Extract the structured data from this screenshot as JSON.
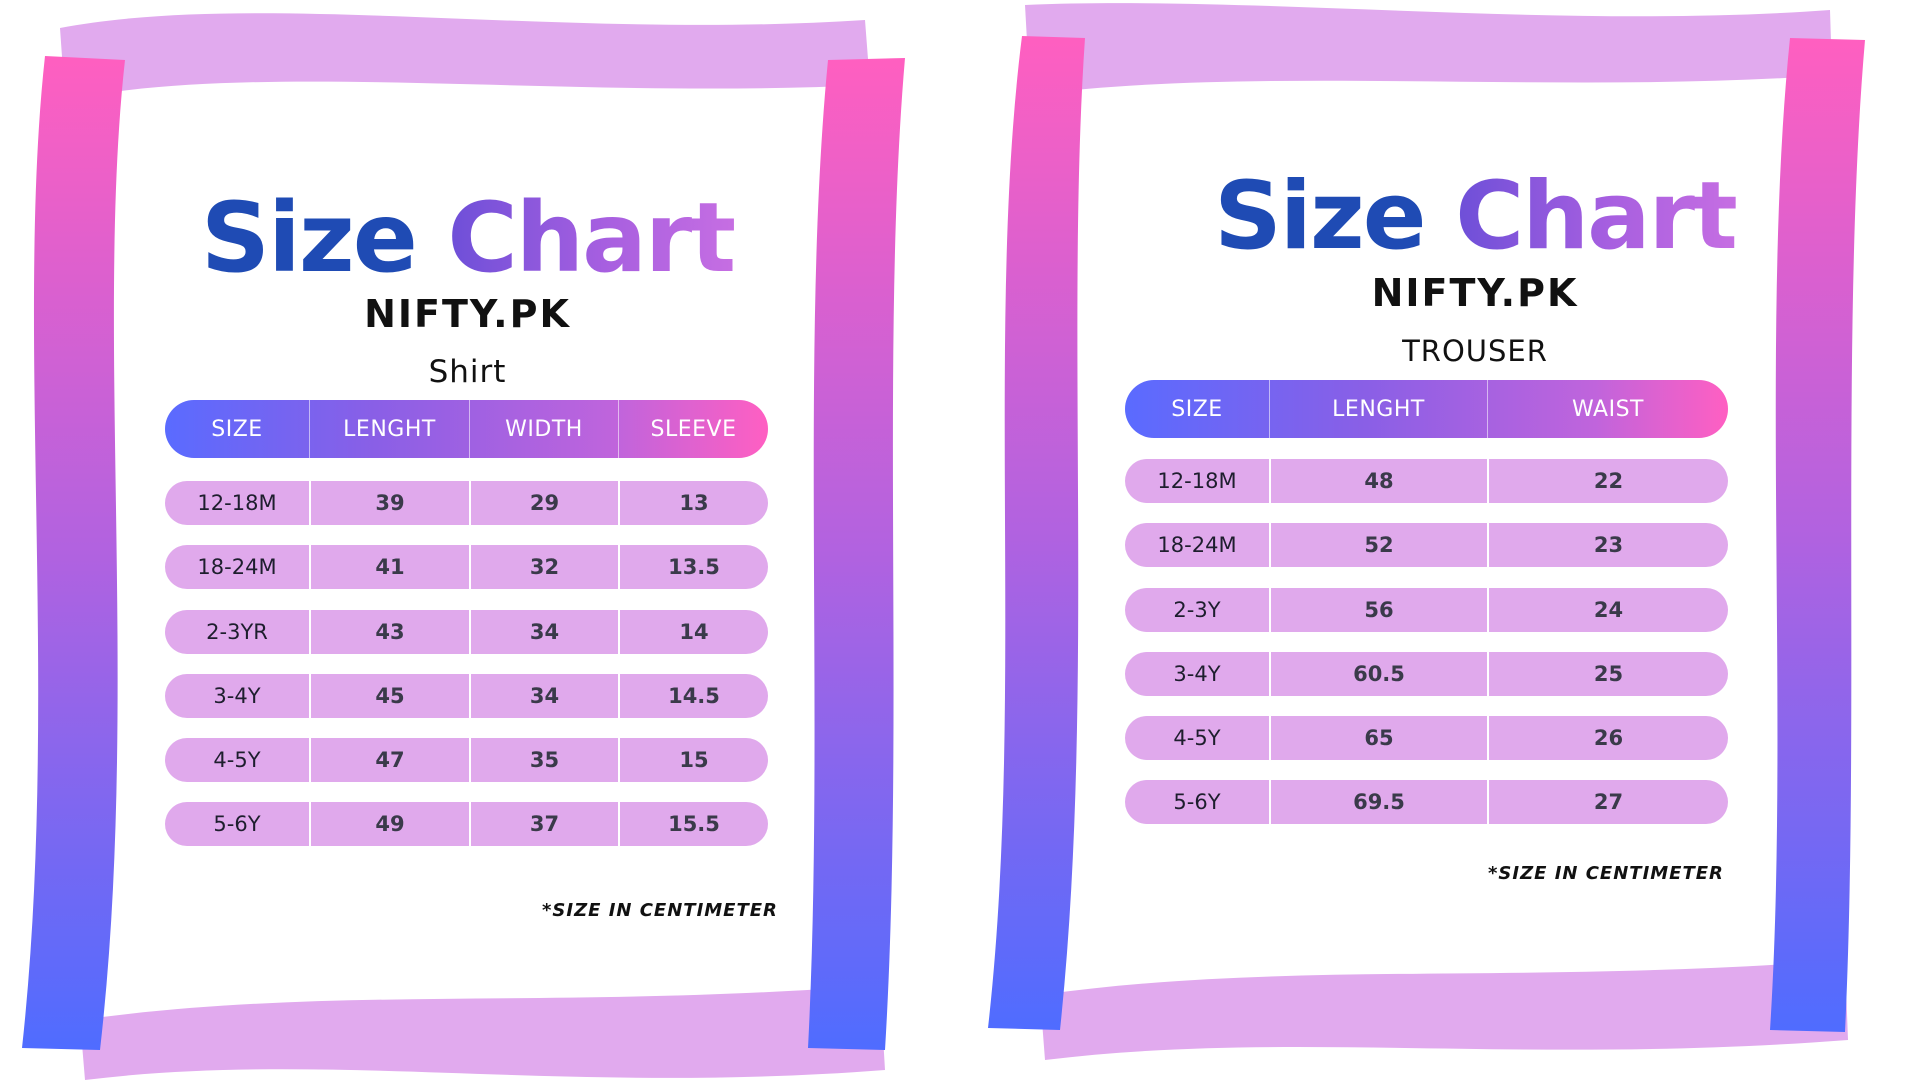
{
  "colors": {
    "title_blue": "#1f4bb4",
    "title_purple": "#b86ae0",
    "frame_pink": "#ff5fc0",
    "frame_blue": "#4f6cff",
    "ribbon_lilac": "#e1aaee",
    "row_fill": "#e0a9ec",
    "header_gradient": [
      "#5a6bff",
      "#8a5fe6",
      "#c064dc",
      "#ff5fc2"
    ]
  },
  "left_card": {
    "title_word1": "Size",
    "title_word2": "Chart",
    "brand": "NIFTY.PK",
    "subtitle": "Shirt",
    "headers": [
      "SIZE",
      "LENGHT",
      "WIDTH",
      "SLEEVE"
    ],
    "rows": [
      {
        "size": "12-18M",
        "length": "39",
        "width": "29",
        "sleeve": "13"
      },
      {
        "size": "18-24M",
        "length": "41",
        "width": "32",
        "sleeve": "13.5"
      },
      {
        "size": "2-3YR",
        "length": "43",
        "width": "34",
        "sleeve": "14"
      },
      {
        "size": "3-4Y",
        "length": "45",
        "width": "34",
        "sleeve": "14.5"
      },
      {
        "size": "4-5Y",
        "length": "47",
        "width": "35",
        "sleeve": "15"
      },
      {
        "size": "5-6Y",
        "length": "49",
        "width": "37",
        "sleeve": "15.5"
      }
    ],
    "note": "*SIZE IN CENTIMETER"
  },
  "right_card": {
    "title_word1": "Size",
    "title_word2": "Chart",
    "brand": "NIFTY.PK",
    "subtitle": "TROUSER",
    "headers": [
      "SIZE",
      "LENGHT",
      "WAIST"
    ],
    "rows": [
      {
        "size": "12-18M",
        "length": "48",
        "waist": "22"
      },
      {
        "size": "18-24M",
        "length": "52",
        "waist": "23"
      },
      {
        "size": "2-3Y",
        "length": "56",
        "waist": "24"
      },
      {
        "size": "3-4Y",
        "length": "60.5",
        "waist": "25"
      },
      {
        "size": "4-5Y",
        "length": "65",
        "waist": "26"
      },
      {
        "size": "5-6Y",
        "length": "69.5",
        "waist": "27"
      }
    ],
    "note": "*SIZE IN CENTIMETER"
  }
}
